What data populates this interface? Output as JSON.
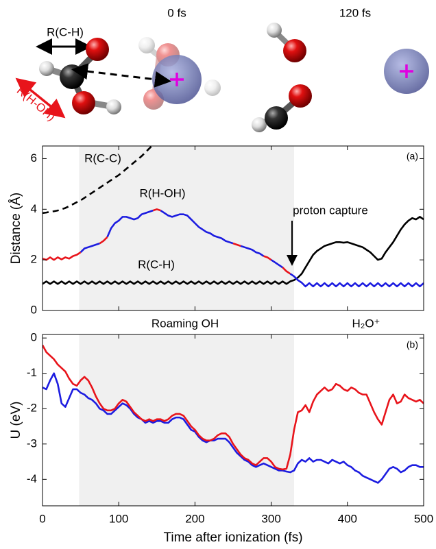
{
  "illustration": {
    "time_left": "0 fs",
    "time_right": "120 fs",
    "label_ch": "R(C-H)",
    "label_hoh": "R(H-OH)"
  },
  "chart_data": [
    {
      "type": "line",
      "panel_label": "(a)",
      "ylabel": "Distance (Å)",
      "xlim": [
        0,
        500
      ],
      "ylim": [
        0,
        6.5
      ],
      "xticks": [
        0,
        100,
        200,
        300,
        400,
        500
      ],
      "yticks": [
        0,
        2,
        4,
        6
      ],
      "xticklabels": false,
      "shade": [
        48,
        330
      ],
      "shade_color": "#f0f0f0",
      "annotations": [
        "R(C-C)",
        "R(H-OH)",
        "R(C-H)",
        "proton capture",
        "Roaming OH",
        "H₂O⁺"
      ],
      "x": [
        0,
        5,
        10,
        15,
        20,
        25,
        30,
        35,
        40,
        45,
        50,
        55,
        60,
        65,
        70,
        75,
        80,
        85,
        90,
        95,
        100,
        105,
        110,
        115,
        120,
        125,
        130,
        135,
        140,
        145,
        150,
        155,
        160,
        165,
        170,
        175,
        180,
        185,
        190,
        195,
        200,
        205,
        210,
        215,
        220,
        225,
        230,
        235,
        240,
        245,
        250,
        255,
        260,
        265,
        270,
        275,
        280,
        285,
        290,
        295,
        300,
        305,
        310,
        315,
        320,
        325,
        330,
        335,
        340,
        345,
        350,
        355,
        360,
        365,
        370,
        375,
        380,
        385,
        390,
        395,
        400,
        405,
        410,
        415,
        420,
        425,
        430,
        435,
        440,
        445,
        450,
        455,
        460,
        465,
        470,
        475,
        480,
        485,
        490,
        495,
        500
      ],
      "series": [
        {
          "color": "#000000",
          "linestyle": "dashed",
          "values": [
            3.85,
            3.87,
            3.9,
            3.92,
            3.95,
            4.0,
            4.05,
            4.12,
            4.2,
            4.28,
            4.35,
            4.45,
            4.55,
            4.65,
            4.75,
            4.85,
            4.95,
            5.05,
            5.15,
            5.25,
            5.35,
            5.47,
            5.6,
            5.72,
            5.85,
            5.97,
            6.1,
            6.25,
            6.4,
            6.55,
            6.7,
            null,
            null,
            null,
            null,
            null,
            null,
            null,
            null,
            null,
            null,
            null,
            null,
            null,
            null,
            null,
            null,
            null,
            null,
            null,
            null,
            null,
            null,
            null,
            null,
            null,
            null,
            null,
            null,
            null,
            null,
            null,
            null,
            null,
            null,
            null,
            null,
            null,
            null,
            null,
            null,
            null,
            null,
            null,
            null,
            null,
            null,
            null,
            null,
            null,
            null,
            null,
            null,
            null,
            null,
            null,
            null,
            null,
            null,
            null,
            null,
            null,
            null,
            null,
            null,
            null,
            null,
            null,
            null,
            null,
            null
          ]
        },
        {
          "color": "#000000",
          "linestyle": "solid",
          "values": [
            1.05,
            1.15,
            1.05,
            1.15,
            1.05,
            1.15,
            1.05,
            1.15,
            1.05,
            1.15,
            1.05,
            1.15,
            1.05,
            1.15,
            1.05,
            1.15,
            1.05,
            1.15,
            1.05,
            1.15,
            1.05,
            1.15,
            1.05,
            1.15,
            1.05,
            1.15,
            1.05,
            1.15,
            1.05,
            1.15,
            1.05,
            1.15,
            1.05,
            1.15,
            1.05,
            1.15,
            1.05,
            1.15,
            1.05,
            1.15,
            1.05,
            1.15,
            1.05,
            1.15,
            1.05,
            1.15,
            1.05,
            1.15,
            1.05,
            1.15,
            1.05,
            1.15,
            1.05,
            1.15,
            1.05,
            1.15,
            1.05,
            1.15,
            1.05,
            1.15,
            1.05,
            1.15,
            1.05,
            1.15,
            1.05,
            1.15,
            1.2,
            1.3,
            1.45,
            1.7,
            1.95,
            2.2,
            2.35,
            2.45,
            2.55,
            2.6,
            2.65,
            2.7,
            2.7,
            2.68,
            2.7,
            2.65,
            2.6,
            2.55,
            2.5,
            2.4,
            2.3,
            2.15,
            2.0,
            2.05,
            2.3,
            2.5,
            2.7,
            2.95,
            3.2,
            3.4,
            3.55,
            3.65,
            3.6,
            3.7,
            3.6
          ]
        },
        {
          "color": "#1c1ce0",
          "linestyle": "solid",
          "values": [
            null,
            null,
            null,
            null,
            null,
            null,
            null,
            null,
            null,
            null,
            2.3,
            2.45,
            2.5,
            2.55,
            2.6,
            2.65,
            null,
            2.9,
            3.25,
            3.45,
            3.55,
            3.7,
            3.7,
            3.65,
            3.6,
            3.65,
            3.8,
            3.85,
            3.9,
            3.95,
            null,
            3.95,
            3.85,
            3.75,
            3.7,
            3.75,
            3.8,
            3.8,
            3.75,
            3.6,
            3.45,
            3.3,
            3.2,
            3.1,
            3.05,
            2.95,
            2.9,
            2.85,
            2.75,
            2.7,
            2.65,
            null,
            2.55,
            2.5,
            2.45,
            2.4,
            2.3,
            2.25,
            2.15,
            null,
            2.0,
            1.9,
            1.8,
            1.7,
            null,
            1.45,
            1.35,
            1.2,
            1.1,
            0.95,
            1.08,
            0.95,
            1.08,
            0.95,
            1.08,
            0.95,
            1.08,
            0.95,
            1.08,
            0.95,
            1.08,
            0.95,
            1.08,
            0.95,
            1.08,
            0.95,
            1.08,
            0.95,
            1.08,
            0.95,
            1.08,
            0.95,
            1.08,
            0.95,
            1.08,
            0.95,
            1.08,
            0.95,
            1.08,
            0.95,
            1.08
          ]
        },
        {
          "color": "#e8141b",
          "linestyle": "solid",
          "values": [
            2.05,
            2.0,
            2.1,
            2.0,
            2.1,
            2.02,
            2.1,
            2.05,
            2.15,
            2.2,
            2.3,
            null,
            null,
            null,
            null,
            2.65,
            2.75,
            2.9,
            null,
            null,
            null,
            null,
            null,
            null,
            null,
            null,
            null,
            null,
            null,
            3.95,
            4.0,
            3.95,
            null,
            null,
            null,
            null,
            null,
            null,
            null,
            null,
            null,
            null,
            null,
            null,
            null,
            null,
            null,
            null,
            null,
            null,
            2.65,
            2.6,
            2.55,
            null,
            null,
            null,
            null,
            null,
            2.15,
            2.1,
            2.0,
            null,
            null,
            1.7,
            1.55,
            1.45,
            null,
            null,
            null,
            null,
            null,
            null,
            null,
            null,
            null,
            null,
            null,
            null,
            null,
            null,
            null,
            null,
            null,
            null,
            null,
            null,
            null,
            null,
            null,
            null,
            null,
            null,
            null,
            null,
            null,
            null,
            null,
            null,
            null,
            null,
            null
          ]
        }
      ]
    },
    {
      "type": "line",
      "panel_label": "(b)",
      "ylabel": "U (eV)",
      "xlabel": "Time after ionization (fs)",
      "xlim": [
        0,
        500
      ],
      "ylim": [
        -4.75,
        0.1
      ],
      "xticks": [
        0,
        100,
        200,
        300,
        400,
        500
      ],
      "yticks": [
        -4,
        -3,
        -2,
        -1,
        0
      ],
      "xticklabels": true,
      "shade": [
        48,
        330
      ],
      "shade_color": "#f0f0f0",
      "x": [
        0,
        5,
        10,
        15,
        20,
        25,
        30,
        35,
        40,
        45,
        50,
        55,
        60,
        65,
        70,
        75,
        80,
        85,
        90,
        95,
        100,
        105,
        110,
        115,
        120,
        125,
        130,
        135,
        140,
        145,
        150,
        155,
        160,
        165,
        170,
        175,
        180,
        185,
        190,
        195,
        200,
        205,
        210,
        215,
        220,
        225,
        230,
        235,
        240,
        245,
        250,
        255,
        260,
        265,
        270,
        275,
        280,
        285,
        290,
        295,
        300,
        305,
        310,
        315,
        320,
        325,
        330,
        335,
        340,
        345,
        350,
        355,
        360,
        365,
        370,
        375,
        380,
        385,
        390,
        395,
        400,
        405,
        410,
        415,
        420,
        425,
        430,
        435,
        440,
        445,
        450,
        455,
        460,
        465,
        470,
        475,
        480,
        485,
        490,
        495,
        500
      ],
      "series": [
        {
          "color": "#1c1ce0",
          "linestyle": "solid",
          "values": [
            -1.4,
            -1.45,
            -1.2,
            -1.0,
            -1.3,
            -1.85,
            -1.95,
            -1.7,
            -1.45,
            -1.45,
            -1.55,
            -1.6,
            -1.7,
            -1.75,
            -1.85,
            -2.0,
            -2.05,
            -2.15,
            -2.15,
            -2.05,
            -1.95,
            -1.85,
            -1.9,
            -2.0,
            -2.15,
            -2.25,
            -2.3,
            -2.4,
            -2.35,
            -2.4,
            -2.35,
            -2.35,
            -2.4,
            -2.4,
            -2.3,
            -2.25,
            -2.25,
            -2.3,
            -2.45,
            -2.6,
            -2.65,
            -2.8,
            -2.9,
            -2.95,
            -2.9,
            -2.9,
            -2.85,
            -2.85,
            -2.85,
            -2.95,
            -3.1,
            -3.25,
            -3.35,
            -3.45,
            -3.5,
            -3.6,
            -3.65,
            -3.6,
            -3.55,
            -3.6,
            -3.65,
            -3.7,
            -3.75,
            -3.75,
            -3.78,
            -3.8,
            -3.75,
            -3.55,
            -3.45,
            -3.5,
            -3.4,
            -3.5,
            -3.45,
            -3.45,
            -3.5,
            -3.55,
            -3.45,
            -3.5,
            -3.55,
            -3.5,
            -3.6,
            -3.65,
            -3.75,
            -3.8,
            -3.9,
            -3.95,
            -4.0,
            -4.05,
            -4.1,
            -4.0,
            -3.85,
            -3.7,
            -3.65,
            -3.7,
            -3.8,
            -3.75,
            -3.65,
            -3.6,
            -3.6,
            -3.65,
            -3.65
          ]
        },
        {
          "color": "#e8141b",
          "linestyle": "solid",
          "values": [
            -0.2,
            -0.4,
            -0.5,
            -0.6,
            -0.75,
            -0.85,
            -0.95,
            -1.15,
            -1.3,
            -1.35,
            -1.2,
            -1.1,
            -1.2,
            -1.4,
            -1.65,
            -1.85,
            -2.0,
            -2.05,
            -2.05,
            -2.0,
            -1.85,
            -1.75,
            -1.8,
            -1.95,
            -2.1,
            -2.2,
            -2.3,
            -2.35,
            -2.3,
            -2.35,
            -2.3,
            -2.3,
            -2.35,
            -2.3,
            -2.2,
            -2.15,
            -2.15,
            -2.2,
            -2.35,
            -2.5,
            -2.6,
            -2.75,
            -2.85,
            -2.9,
            -2.9,
            -2.85,
            -2.75,
            -2.7,
            -2.7,
            -2.8,
            -3.0,
            -3.15,
            -3.3,
            -3.4,
            -3.45,
            -3.55,
            -3.6,
            -3.5,
            -3.4,
            -3.4,
            -3.5,
            -3.65,
            -3.7,
            -3.72,
            -3.7,
            -3.3,
            -2.6,
            -2.1,
            -2.05,
            -1.9,
            -2.1,
            -1.8,
            -1.6,
            -1.5,
            -1.4,
            -1.5,
            -1.45,
            -1.3,
            -1.35,
            -1.45,
            -1.5,
            -1.4,
            -1.45,
            -1.55,
            -1.6,
            -1.6,
            -1.85,
            -2.1,
            -2.3,
            -2.45,
            -2.1,
            -1.75,
            -1.6,
            -1.85,
            -1.8,
            -1.6,
            -1.7,
            -1.75,
            -1.8,
            -1.75,
            -1.85
          ]
        }
      ]
    }
  ]
}
